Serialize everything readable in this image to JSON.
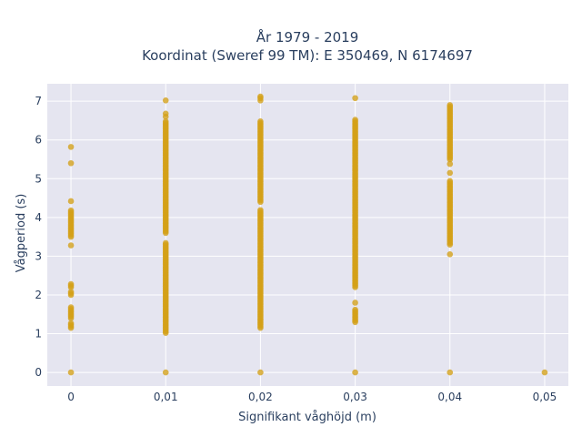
{
  "chart_data": {
    "type": "scatter",
    "title_line1": "År 1979 - 2019",
    "title_line2": "Koordinat (Sweref 99 TM): E 350469, N 6174697",
    "xlabel": "Signifikant våghöjd (m)",
    "ylabel": "Vågperiod (s)",
    "xlim": [
      -0.0025,
      0.0525
    ],
    "ylim": [
      -0.35,
      7.45
    ],
    "x_ticks": [
      0,
      0.01,
      0.02,
      0.03,
      0.04,
      0.05
    ],
    "x_tick_labels": [
      "0",
      "0,01",
      "0,02",
      "0,03",
      "0,04",
      "0,05"
    ],
    "y_ticks": [
      0,
      1,
      2,
      3,
      4,
      5,
      6,
      7
    ],
    "y_tick_labels": [
      "0",
      "1",
      "2",
      "3",
      "4",
      "5",
      "6",
      "7"
    ],
    "grid": true,
    "marker_color": "#D4A017",
    "background_color": "#E5E5F0",
    "columns": [
      {
        "x": 0,
        "ranges": [
          [
            1.15,
            1.28
          ],
          [
            1.4,
            1.7
          ],
          [
            2.0,
            2.1
          ],
          [
            2.2,
            2.3
          ],
          [
            3.5,
            4.2
          ]
        ],
        "points": [
          0,
          3.28,
          4.42,
          5.4,
          5.82
        ]
      },
      {
        "x": 0.01,
        "ranges": [
          [
            1.02,
            3.35
          ],
          [
            3.6,
            6.5
          ]
        ],
        "points": [
          0,
          6.6,
          6.68,
          7.02
        ]
      },
      {
        "x": 0.02,
        "ranges": [
          [
            1.15,
            4.2
          ],
          [
            4.4,
            6.5
          ]
        ],
        "points": [
          0,
          7.02,
          7.08,
          7.12
        ]
      },
      {
        "x": 0.03,
        "ranges": [
          [
            1.3,
            1.65
          ],
          [
            2.2,
            6.55
          ]
        ],
        "points": [
          0,
          1.8,
          7.08
        ]
      },
      {
        "x": 0.04,
        "ranges": [
          [
            3.3,
            4.95
          ],
          [
            5.5,
            6.9
          ]
        ],
        "points": [
          0,
          3.05,
          5.15,
          5.38
        ]
      },
      {
        "x": 0.05,
        "ranges": [],
        "points": [
          0
        ]
      }
    ]
  }
}
